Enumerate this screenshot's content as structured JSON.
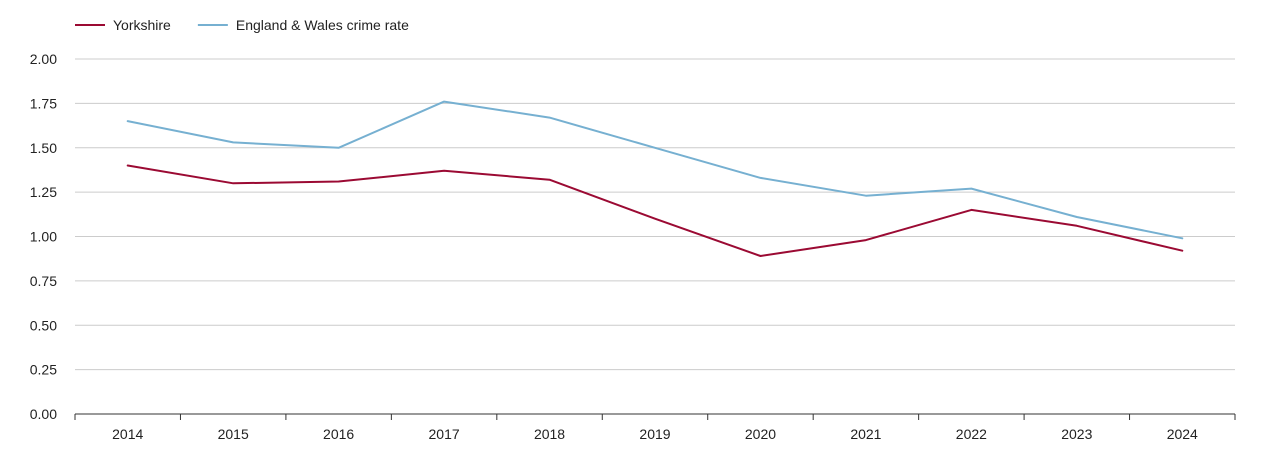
{
  "chart_data": {
    "type": "line",
    "title": "",
    "xlabel": "",
    "ylabel": "",
    "categories": [
      "2014",
      "2015",
      "2016",
      "2017",
      "2018",
      "2019",
      "2020",
      "2021",
      "2022",
      "2023",
      "2024"
    ],
    "ylim": [
      0,
      2
    ],
    "yticks": [
      "0.00",
      "0.25",
      "0.50",
      "0.75",
      "1.00",
      "1.25",
      "1.50",
      "1.75",
      "2.00"
    ],
    "grid": true,
    "legend_position": "top-left",
    "series": [
      {
        "name": "Yorkshire",
        "color": "#9b0a33",
        "values": [
          1.4,
          1.3,
          1.31,
          1.37,
          1.32,
          1.1,
          0.89,
          0.98,
          1.15,
          1.06,
          0.92
        ]
      },
      {
        "name": "England & Wales crime rate",
        "color": "#76b0d1",
        "values": [
          1.65,
          1.53,
          1.5,
          1.76,
          1.67,
          1.5,
          1.33,
          1.23,
          1.27,
          1.11,
          0.99
        ]
      }
    ]
  }
}
